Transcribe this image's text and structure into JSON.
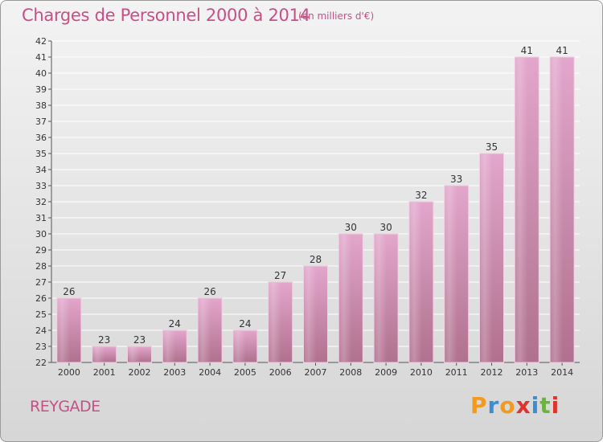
{
  "header": {
    "title": "Charges de Personnel 2000 à 2014",
    "subtitle": "(en milliers d'€)"
  },
  "footer": {
    "commune": "REYGADE",
    "logo": "Proxiti"
  },
  "colors": {
    "bar_top": "#e3a6cc",
    "bar_bottom": "#b0718e",
    "title": "#c84f86",
    "grid": "#ffffff",
    "logo_letters": [
      "#f29a1f",
      "#3b8ed6",
      "#f29a1f",
      "#e2322c",
      "#3b8ed6",
      "#6cb33f",
      "#e2322c"
    ]
  },
  "chart_data": {
    "type": "bar",
    "title": "Charges de Personnel 2000 à 2014",
    "unit": "(en milliers d'€)",
    "categories": [
      "2000",
      "2001",
      "2002",
      "2003",
      "2004",
      "2005",
      "2006",
      "2007",
      "2008",
      "2009",
      "2010",
      "2011",
      "2012",
      "2013",
      "2014"
    ],
    "values": [
      26,
      23,
      23,
      24,
      26,
      24,
      27,
      28,
      30,
      30,
      32,
      33,
      35,
      41,
      41
    ],
    "ylim": [
      22,
      42
    ],
    "yticks": [
      22,
      23,
      24,
      25,
      26,
      27,
      28,
      29,
      30,
      31,
      32,
      33,
      34,
      35,
      36,
      37,
      38,
      39,
      40,
      41,
      42
    ],
    "grid": true,
    "data_labels": true
  }
}
